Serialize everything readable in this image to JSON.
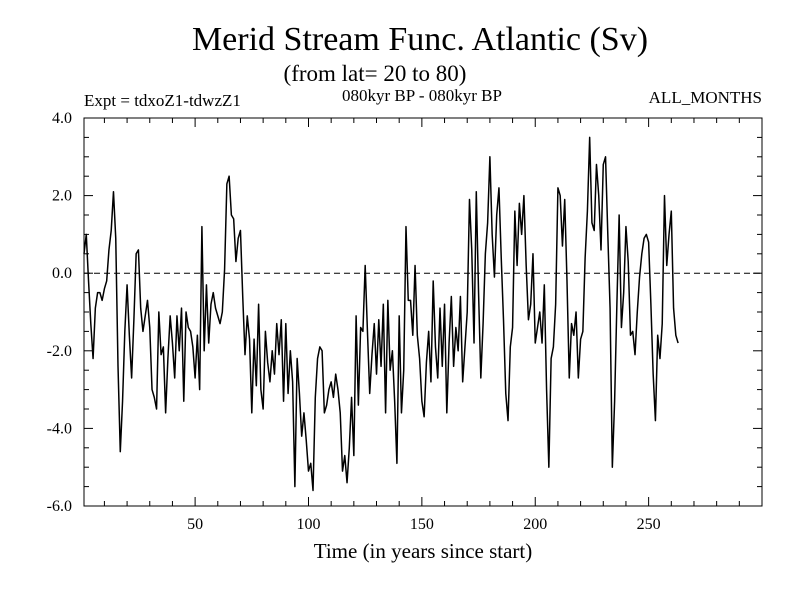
{
  "chart_data": {
    "type": "line",
    "title": "Merid Stream Func. Atlantic (Sv)",
    "subtitle": "(from lat= 20 to 80)",
    "experiment_label": "Expt = tdxoZ1-tdwzZ1",
    "period_label": "080kyr BP - 080kyr BP",
    "months_label": "ALL_MONTHS",
    "xlabel": "Time (in years since start)",
    "ylabel": "",
    "xlim": [
      1,
      300
    ],
    "ylim": [
      -6.0,
      4.0
    ],
    "x_major_ticks": [
      50,
      100,
      150,
      200,
      250
    ],
    "x_tick_labels": [
      "50",
      "100",
      "150",
      "200",
      "250"
    ],
    "x_minor_step": 10,
    "y_major_ticks": [
      -6.0,
      -4.0,
      -2.0,
      0.0,
      2.0,
      4.0
    ],
    "y_tick_labels": [
      "-6.0",
      "-4.0",
      "-2.0",
      "0.0",
      "2.0",
      "4.0"
    ],
    "y_minor_step": 0.5,
    "reference_line": {
      "y": 0.0,
      "style": "dashed"
    },
    "series": [
      {
        "name": "Merid Stream Func. Atlantic",
        "x_start": 1,
        "x_step": 1,
        "values": [
          0.5,
          1.0,
          -0.2,
          -1.3,
          -2.2,
          -0.9,
          -0.5,
          -0.5,
          -0.7,
          -0.4,
          -0.2,
          0.6,
          1.1,
          2.1,
          0.9,
          -2.4,
          -4.6,
          -3.3,
          -1.5,
          -0.3,
          -1.6,
          -2.7,
          -1.2,
          0.5,
          0.6,
          -0.9,
          -1.5,
          -1.1,
          -0.7,
          -1.4,
          -3.0,
          -3.2,
          -3.5,
          -1.0,
          -2.1,
          -1.9,
          -3.6,
          -2.2,
          -1.1,
          -1.8,
          -2.7,
          -1.1,
          -2.0,
          -0.9,
          -3.3,
          -1.0,
          -1.4,
          -1.5,
          -1.9,
          -2.7,
          -1.6,
          -3.0,
          1.2,
          -2.0,
          -0.3,
          -1.8,
          -0.8,
          -0.5,
          -0.9,
          -1.1,
          -1.3,
          -1.0,
          0.1,
          2.3,
          2.5,
          1.5,
          1.4,
          0.3,
          0.9,
          1.1,
          -0.6,
          -2.1,
          -1.1,
          -1.7,
          -3.6,
          -1.7,
          -2.9,
          -0.8,
          -3.0,
          -3.5,
          -1.5,
          -2.3,
          -2.8,
          -2.0,
          -2.6,
          -1.3,
          -2.1,
          -1.2,
          -3.3,
          -1.3,
          -3.1,
          -2.0,
          -2.8,
          -5.5,
          -2.2,
          -3.1,
          -4.2,
          -3.6,
          -4.3,
          -5.1,
          -4.9,
          -5.6,
          -3.2,
          -2.2,
          -1.9,
          -2.0,
          -3.6,
          -3.4,
          -3.0,
          -2.8,
          -3.2,
          -2.6,
          -3.0,
          -3.6,
          -5.1,
          -4.7,
          -5.4,
          -4.5,
          -3.2,
          -4.7,
          -1.1,
          -3.4,
          -1.4,
          -1.5,
          0.2,
          -1.5,
          -3.1,
          -2.1,
          -1.3,
          -2.6,
          -1.2,
          -2.4,
          -0.8,
          -3.6,
          -0.7,
          -2.5,
          -2.0,
          -3.3,
          -4.9,
          -1.1,
          -3.6,
          -2.5,
          1.2,
          -0.7,
          -0.7,
          -1.6,
          0.2,
          -1.6,
          -2.2,
          -3.3,
          -3.7,
          -2.3,
          -1.5,
          -2.8,
          -0.2,
          -1.9,
          -2.7,
          -0.9,
          -2.4,
          -0.8,
          -3.6,
          -1.8,
          -0.6,
          -2.4,
          -1.4,
          -2.0,
          -0.6,
          -2.8,
          -1.9,
          -1.0,
          1.9,
          0.6,
          -1.8,
          2.1,
          -0.5,
          -2.7,
          -1.3,
          0.5,
          1.3,
          3.0,
          1.0,
          -0.1,
          1.5,
          2.2,
          0.4,
          -1.2,
          -3.1,
          -3.8,
          -1.9,
          -1.4,
          1.6,
          0.2,
          1.8,
          1.0,
          2.0,
          0.2,
          -1.2,
          -0.8,
          0.5,
          -1.8,
          -1.4,
          -1.0,
          -1.8,
          -0.3,
          -3.0,
          -5.0,
          -2.2,
          -1.9,
          -0.8,
          2.2,
          2.0,
          0.7,
          1.9,
          -0.2,
          -2.7,
          -1.3,
          -1.6,
          -1.0,
          -2.7,
          -1.7,
          -1.5,
          0.4,
          1.6,
          3.5,
          1.3,
          1.1,
          2.8,
          2.0,
          0.6,
          2.8,
          3.0,
          1.0,
          -0.9,
          -5.0,
          -3.3,
          -0.8,
          1.5,
          -1.4,
          -0.5,
          1.2,
          0.3,
          -1.6,
          -1.5,
          -2.1,
          -1.0,
          -0.1,
          0.5,
          0.9,
          1.0,
          0.8,
          -0.8,
          -2.6,
          -3.8,
          -1.6,
          -2.2,
          -1.3,
          2.0,
          0.2,
          1.0,
          1.6,
          -0.9,
          -1.6,
          -1.8
        ]
      }
    ]
  }
}
